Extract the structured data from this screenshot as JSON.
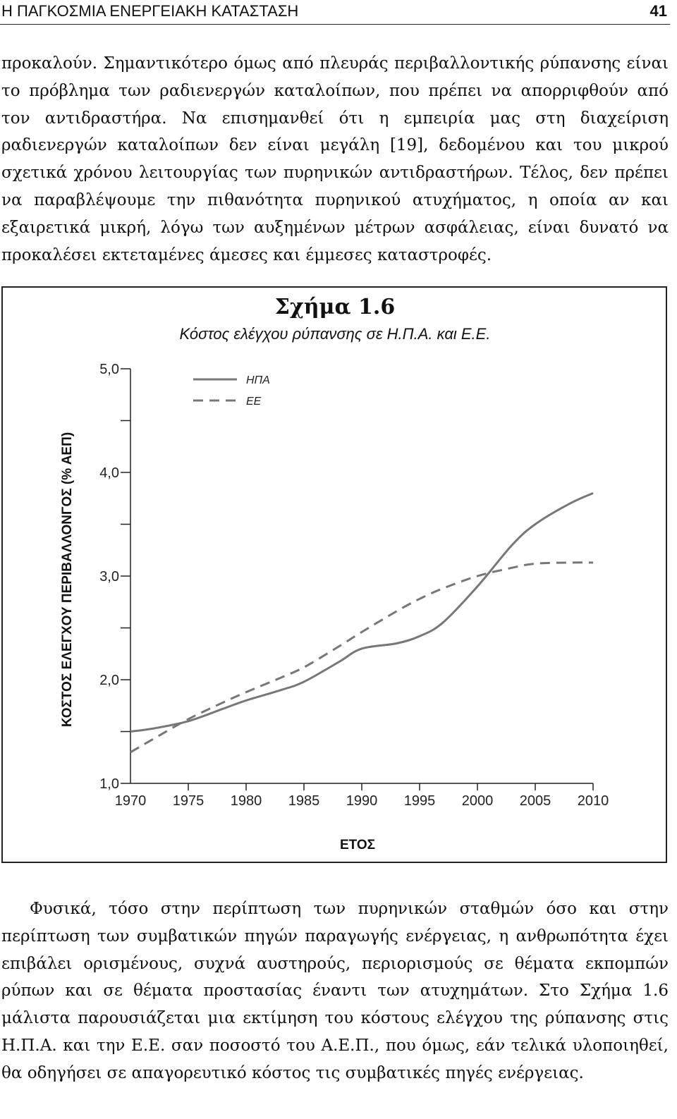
{
  "header": {
    "title": "Η ΠΑΓΚΟΣΜΙΑ ΕΝΕΡΓΕΙΑΚΗ ΚΑΤΑΣΤΑΣΗ",
    "page_number": "41"
  },
  "paragraphs": {
    "p1": "προκαλούν. Σημαντικότερο όμως από πλευράς περιβαλλοντικής ρύπανσης είναι το πρόβλημα των ραδιενεργών καταλοίπων, που πρέπει να απορριφθούν από τον αντιδραστήρα. Να επισημανθεί ότι η εμπειρία μας στη διαχείριση ραδιενεργών καταλοίπων δεν είναι μεγάλη [19], δεδομένου και του μικρού σχετικά χρόνου λειτουργίας των πυρηνικών αντιδραστήρων. Τέλος, δεν πρέπει να παραβλέψουμε την πιθανότητα πυρηνικού ατυχήματος, η οποία αν και εξαιρετικά μικρή, λόγω των αυξημένων μέτρων ασφάλειας, είναι δυνατό να προκαλέσει εκτεταμένες άμεσες και έμμεσες καταστροφές.",
    "p2": "Φυσικά, τόσο στην περίπτωση των πυρηνικών σταθμών όσο και στην περίπτωση των συμβατικών πηγών παραγωγής ενέργειας, η ανθρωπότητα έχει επιβάλει ορισμένους, συχνά αυστηρούς, περιορισμούς σε θέματα εκπομπών ρύπων και σε θέματα προστασίας έναντι των ατυχημάτων. Στο Σχήμα 1.6 μάλιστα παρουσιάζεται μια εκτίμηση του κόστους ελέγχου της ρύπανσης στις Η.Π.Α. και την Ε.Ε. σαν ποσοστό του Α.Ε.Π., που όμως, εάν τελικά υλοποιηθεί, θα οδηγήσει σε απαγορευτικό κόστος τις συμβατικές πηγές ενέργειας."
  },
  "figure": {
    "label": "Σχήμα 1.6",
    "caption": "Κόστος ελέγχου ρύπανσης σε Η.Π.Α. και Ε.Ε."
  },
  "chart_data": {
    "type": "line",
    "xlabel": "ΕΤΟΣ",
    "ylabel": "ΚΟΣΤΟΣ ΕΛΕΓΧΟΥ ΠΕΡΙΒΑΛΛΟΝΓΟΣ (% ΑΕΠ)",
    "xlim": [
      1970,
      2010
    ],
    "ylim": [
      1.0,
      5.0
    ],
    "x_ticks": [
      1970,
      1975,
      1980,
      1985,
      1990,
      1995,
      2000,
      2005,
      2010
    ],
    "x_tick_labels": [
      "1970",
      "1975",
      "1980",
      "1985",
      "1990",
      "1995",
      "2000",
      "2005",
      "2010"
    ],
    "y_ticks": [
      1.0,
      1.5,
      2.0,
      2.5,
      3.0,
      3.5,
      4.0,
      4.5,
      5.0
    ],
    "y_tick_labels": [
      "1,0",
      "",
      "2,0",
      "",
      "3,0",
      "",
      "4,0",
      "",
      "5,0"
    ],
    "legend_position": "top-left",
    "grid": false,
    "series": [
      {
        "name": "ΗΠΑ",
        "style": "solid",
        "color": "#777777",
        "x": [
          1970,
          1972,
          1975,
          1978,
          1980,
          1983,
          1985,
          1988,
          1990,
          1993,
          1995,
          1997,
          2000,
          2003,
          2005,
          2008,
          2010
        ],
        "y": [
          1.5,
          1.53,
          1.6,
          1.72,
          1.8,
          1.9,
          1.98,
          2.17,
          2.3,
          2.35,
          2.42,
          2.55,
          2.9,
          3.3,
          3.5,
          3.7,
          3.8
        ]
      },
      {
        "name": "ΕΕ",
        "style": "dashed",
        "color": "#777777",
        "x": [
          1970,
          1972,
          1975,
          1978,
          1980,
          1983,
          1985,
          1988,
          1990,
          1993,
          1995,
          1997,
          2000,
          2003,
          2005,
          2008,
          2010
        ],
        "y": [
          1.3,
          1.43,
          1.62,
          1.78,
          1.88,
          2.02,
          2.12,
          2.32,
          2.46,
          2.66,
          2.78,
          2.88,
          3.0,
          3.08,
          3.12,
          3.13,
          3.13
        ]
      }
    ]
  }
}
